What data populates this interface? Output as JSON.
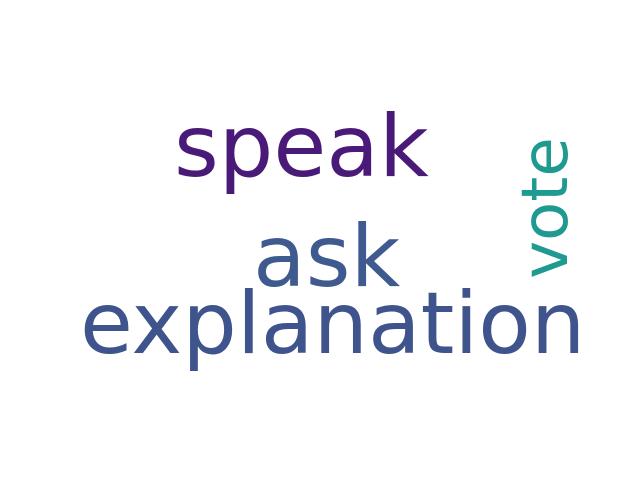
{
  "words": {
    "speak": {
      "text": "speak",
      "color": "#4a1a78"
    },
    "ask": {
      "text": "ask",
      "color": "#3e5a8f"
    },
    "explanation": {
      "text": "explanation",
      "color": "#3f548c"
    },
    "vote": {
      "text": "vote",
      "color": "#1f9a90"
    }
  }
}
